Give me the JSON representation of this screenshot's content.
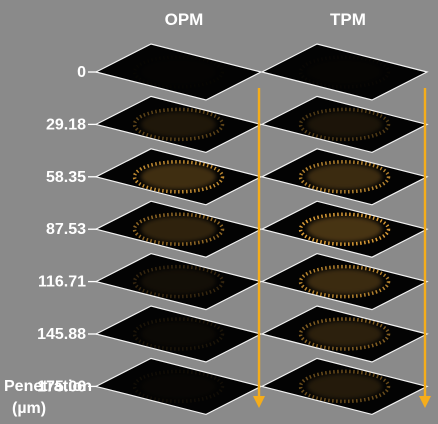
{
  "figure": {
    "column_titles": [
      "OPM",
      "TPM"
    ],
    "depth_labels": [
      "0",
      "29.18",
      "58.35",
      "87.53",
      "116.71",
      "145.88",
      "175.06"
    ],
    "axis_label_line1": "Penetration",
    "axis_label_line2": "(µm)",
    "signal_levels": {
      "OPM": [
        0.02,
        0.35,
        0.75,
        0.55,
        0.2,
        0.1,
        0.06
      ],
      "TPM": [
        0.03,
        0.3,
        0.7,
        0.85,
        0.7,
        0.5,
        0.4
      ]
    },
    "colors": {
      "background": "#8a8a8a",
      "slice_fill": "#030303",
      "slice_outline": "#f2f2f2",
      "signal": "#e8a63a",
      "arrow": "#f5ad1b",
      "text": "#ffffff"
    }
  }
}
